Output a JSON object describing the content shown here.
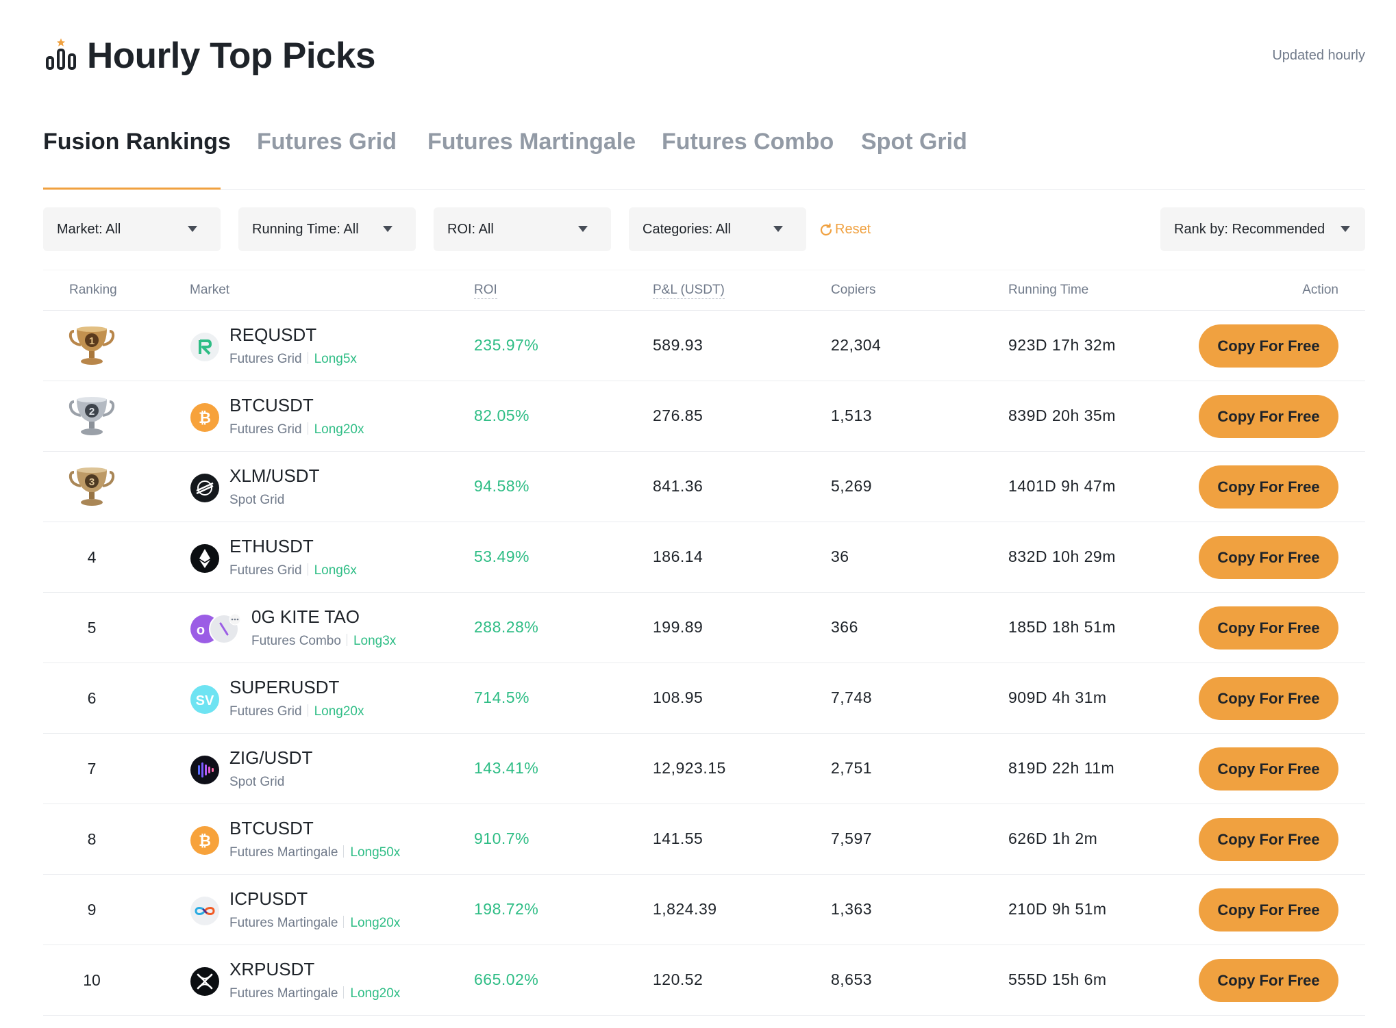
{
  "header": {
    "title": "Hourly Top Picks",
    "updated": "Updated hourly"
  },
  "tabs": [
    {
      "label": "Fusion Rankings",
      "active": true
    },
    {
      "label": "Futures Grid",
      "active": false
    },
    {
      "label": "Futures Martingale",
      "active": false
    },
    {
      "label": "Futures Combo",
      "active": false
    },
    {
      "label": "Spot Grid",
      "active": false
    }
  ],
  "filters": {
    "market": "Market: All",
    "running_time": "Running Time: All",
    "roi": "ROI: All",
    "categories": "Categories: All",
    "reset": "Reset",
    "rank_by": "Rank by: Recommended"
  },
  "columns": {
    "ranking": "Ranking",
    "market": "Market",
    "roi": "ROI",
    "pnl": "P&L (USDT)",
    "copiers": "Copiers",
    "running_time": "Running Time",
    "action": "Action"
  },
  "rows": [
    {
      "rank": "1",
      "pair": "REQUSDT",
      "type": "Futures Grid",
      "leverage": "Long5x",
      "roi": "235.97%",
      "pnl": "589.93",
      "copiers": "22,304",
      "runtime": "923D 17h 32m",
      "action": "Copy For Free",
      "icon": "req-coin-icon"
    },
    {
      "rank": "2",
      "pair": "BTCUSDT",
      "type": "Futures Grid",
      "leverage": "Long20x",
      "roi": "82.05%",
      "pnl": "276.85",
      "copiers": "1,513",
      "runtime": "839D 20h 35m",
      "action": "Copy For Free",
      "icon": "btc-coin-icon"
    },
    {
      "rank": "3",
      "pair": "XLM/USDT",
      "type": "Spot Grid",
      "leverage": "",
      "roi": "94.58%",
      "pnl": "841.36",
      "copiers": "5,269",
      "runtime": "1401D 9h 47m",
      "action": "Copy For Free",
      "icon": "xlm-coin-icon"
    },
    {
      "rank": "4",
      "pair": "ETHUSDT",
      "type": "Futures Grid",
      "leverage": "Long6x",
      "roi": "53.49%",
      "pnl": "186.14",
      "copiers": "36",
      "runtime": "832D 10h 29m",
      "action": "Copy For Free",
      "icon": "eth-coin-icon"
    },
    {
      "rank": "5",
      "pair": "0G KITE TAO",
      "type": "Futures Combo",
      "leverage": "Long3x",
      "roi": "288.28%",
      "pnl": "199.89",
      "copiers": "366",
      "runtime": "185D 18h 51m",
      "action": "Copy For Free",
      "icon": "combo-coins-icon"
    },
    {
      "rank": "6",
      "pair": "SUPERUSDT",
      "type": "Futures Grid",
      "leverage": "Long20x",
      "roi": "714.5%",
      "pnl": "108.95",
      "copiers": "7,748",
      "runtime": "909D 4h 31m",
      "action": "Copy For Free",
      "icon": "super-coin-icon"
    },
    {
      "rank": "7",
      "pair": "ZIG/USDT",
      "type": "Spot Grid",
      "leverage": "",
      "roi": "143.41%",
      "pnl": "12,923.15",
      "copiers": "2,751",
      "runtime": "819D 22h 11m",
      "action": "Copy For Free",
      "icon": "zig-coin-icon"
    },
    {
      "rank": "8",
      "pair": "BTCUSDT",
      "type": "Futures Martingale",
      "leverage": "Long50x",
      "roi": "910.7%",
      "pnl": "141.55",
      "copiers": "7,597",
      "runtime": "626D 1h 2m",
      "action": "Copy For Free",
      "icon": "btc-coin-icon"
    },
    {
      "rank": "9",
      "pair": "ICPUSDT",
      "type": "Futures Martingale",
      "leverage": "Long20x",
      "roi": "198.72%",
      "pnl": "1,824.39",
      "copiers": "1,363",
      "runtime": "210D 9h 51m",
      "action": "Copy For Free",
      "icon": "icp-coin-icon"
    },
    {
      "rank": "10",
      "pair": "XRPUSDT",
      "type": "Futures Martingale",
      "leverage": "Long20x",
      "roi": "665.02%",
      "pnl": "120.52",
      "copiers": "8,653",
      "runtime": "555D 15h 6m",
      "action": "Copy For Free",
      "icon": "xrp-coin-icon"
    }
  ],
  "colors": {
    "accent": "#f0a140",
    "positive": "#2ebd85",
    "text_primary": "#1e2329",
    "text_secondary": "#707a8a",
    "trophy_gold": "#b8864a",
    "trophy_silver": "#9aa0a8",
    "trophy_bronze": "#a98656"
  }
}
